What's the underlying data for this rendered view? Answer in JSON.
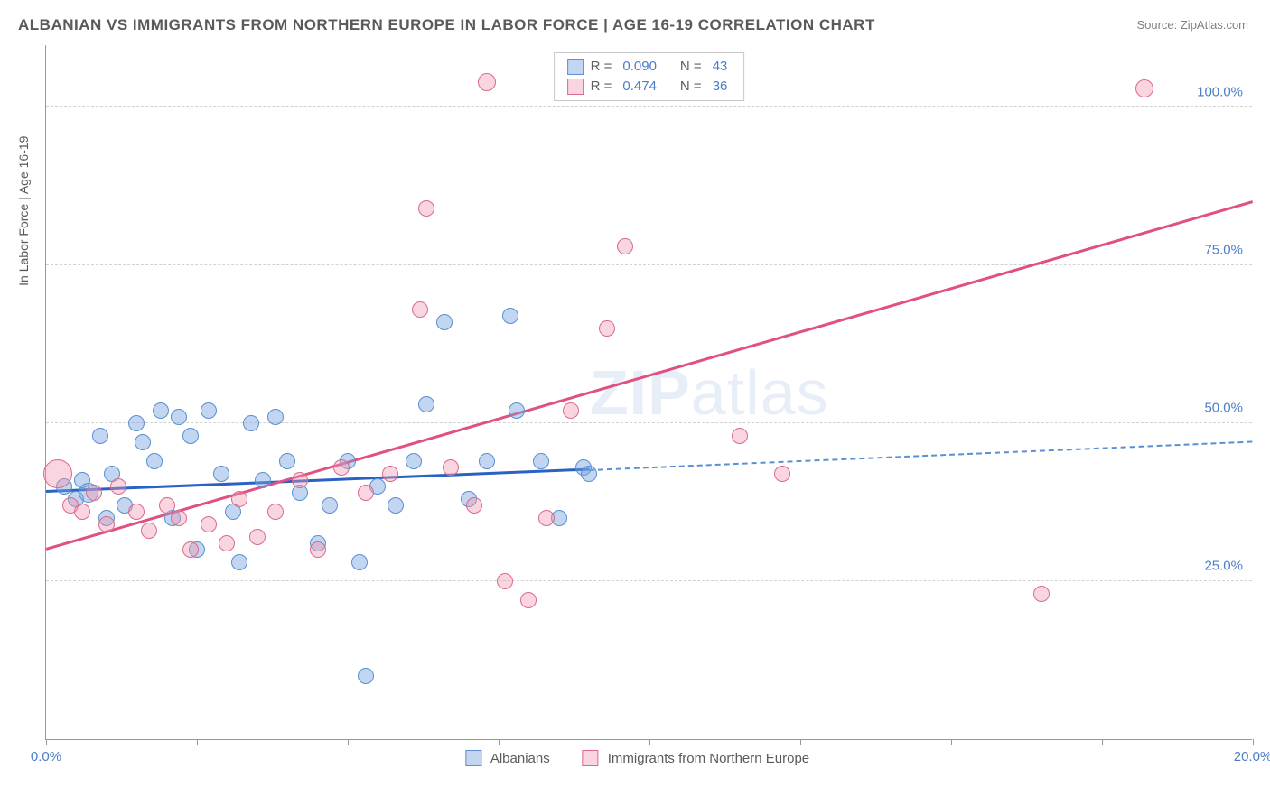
{
  "title": "ALBANIAN VS IMMIGRANTS FROM NORTHERN EUROPE IN LABOR FORCE | AGE 16-19 CORRELATION CHART",
  "source": "Source: ZipAtlas.com",
  "y_axis_label": "In Labor Force | Age 16-19",
  "watermark": {
    "part1": "ZIP",
    "part2": "atlas"
  },
  "chart": {
    "type": "scatter",
    "xlim": [
      0,
      20
    ],
    "ylim": [
      0,
      110
    ],
    "x_ticks": [
      0,
      2.5,
      5,
      7.5,
      10,
      12.5,
      15,
      17.5,
      20
    ],
    "x_tick_labels": {
      "0": "0.0%",
      "20": "20.0%"
    },
    "y_ticks": [
      25,
      50,
      75,
      100
    ],
    "y_tick_labels": {
      "25": "25.0%",
      "50": "50.0%",
      "75": "75.0%",
      "100": "100.0%"
    },
    "background_color": "#ffffff",
    "grid_color": "#d0d0d0",
    "axis_color": "#999999",
    "tick_label_color": "#4a7ec9",
    "series": [
      {
        "name": "Albanians",
        "color_fill": "rgba(120,165,225,0.45)",
        "color_stroke": "#5a8fd0",
        "marker_radius": 9,
        "trend": {
          "x1": 0,
          "y1": 39,
          "x2": 9,
          "y2": 42.5,
          "color": "#2a62c4",
          "width": 3
        },
        "trend_ext": {
          "x1": 9,
          "y1": 42.5,
          "x2": 20,
          "y2": 47,
          "color": "#5a8fd0"
        },
        "points": [
          {
            "x": 0.3,
            "y": 40
          },
          {
            "x": 0.5,
            "y": 38
          },
          {
            "x": 0.6,
            "y": 41
          },
          {
            "x": 0.7,
            "y": 39,
            "r": 11
          },
          {
            "x": 0.9,
            "y": 48
          },
          {
            "x": 1.0,
            "y": 35
          },
          {
            "x": 1.1,
            "y": 42
          },
          {
            "x": 1.3,
            "y": 37
          },
          {
            "x": 1.5,
            "y": 50
          },
          {
            "x": 1.6,
            "y": 47
          },
          {
            "x": 1.8,
            "y": 44
          },
          {
            "x": 1.9,
            "y": 52
          },
          {
            "x": 2.1,
            "y": 35
          },
          {
            "x": 2.2,
            "y": 51
          },
          {
            "x": 2.4,
            "y": 48
          },
          {
            "x": 2.5,
            "y": 30
          },
          {
            "x": 2.7,
            "y": 52
          },
          {
            "x": 2.9,
            "y": 42
          },
          {
            "x": 3.1,
            "y": 36
          },
          {
            "x": 3.2,
            "y": 28
          },
          {
            "x": 3.4,
            "y": 50
          },
          {
            "x": 3.6,
            "y": 41
          },
          {
            "x": 3.8,
            "y": 51
          },
          {
            "x": 4.0,
            "y": 44
          },
          {
            "x": 4.2,
            "y": 39
          },
          {
            "x": 4.5,
            "y": 31
          },
          {
            "x": 4.7,
            "y": 37
          },
          {
            "x": 5.0,
            "y": 44
          },
          {
            "x": 5.2,
            "y": 28
          },
          {
            "x": 5.3,
            "y": 10
          },
          {
            "x": 5.5,
            "y": 40
          },
          {
            "x": 5.8,
            "y": 37
          },
          {
            "x": 6.1,
            "y": 44
          },
          {
            "x": 6.3,
            "y": 53
          },
          {
            "x": 6.6,
            "y": 66
          },
          {
            "x": 7.0,
            "y": 38
          },
          {
            "x": 7.3,
            "y": 44
          },
          {
            "x": 7.7,
            "y": 67
          },
          {
            "x": 7.8,
            "y": 52
          },
          {
            "x": 8.2,
            "y": 44
          },
          {
            "x": 8.5,
            "y": 35
          },
          {
            "x": 8.9,
            "y": 43
          },
          {
            "x": 9.0,
            "y": 42
          }
        ]
      },
      {
        "name": "Immigrants from Northern Europe",
        "color_fill": "rgba(240,150,175,0.40)",
        "color_stroke": "#d86b8c",
        "marker_radius": 9,
        "trend": {
          "x1": 0,
          "y1": 30,
          "x2": 20,
          "y2": 85,
          "color": "#e05080",
          "width": 2.5
        },
        "points": [
          {
            "x": 0.2,
            "y": 42,
            "r": 16
          },
          {
            "x": 0.4,
            "y": 37
          },
          {
            "x": 0.6,
            "y": 36
          },
          {
            "x": 0.8,
            "y": 39
          },
          {
            "x": 1.0,
            "y": 34
          },
          {
            "x": 1.2,
            "y": 40
          },
          {
            "x": 1.5,
            "y": 36
          },
          {
            "x": 1.7,
            "y": 33
          },
          {
            "x": 2.0,
            "y": 37
          },
          {
            "x": 2.2,
            "y": 35
          },
          {
            "x": 2.4,
            "y": 30
          },
          {
            "x": 2.7,
            "y": 34
          },
          {
            "x": 3.0,
            "y": 31
          },
          {
            "x": 3.2,
            "y": 38
          },
          {
            "x": 3.5,
            "y": 32
          },
          {
            "x": 3.8,
            "y": 36
          },
          {
            "x": 4.2,
            "y": 41
          },
          {
            "x": 4.5,
            "y": 30
          },
          {
            "x": 4.9,
            "y": 43
          },
          {
            "x": 5.3,
            "y": 39
          },
          {
            "x": 5.7,
            "y": 42
          },
          {
            "x": 6.2,
            "y": 68
          },
          {
            "x": 6.3,
            "y": 84
          },
          {
            "x": 6.7,
            "y": 43
          },
          {
            "x": 7.1,
            "y": 37
          },
          {
            "x": 7.3,
            "y": 104,
            "r": 10
          },
          {
            "x": 7.6,
            "y": 25
          },
          {
            "x": 8.0,
            "y": 22
          },
          {
            "x": 8.3,
            "y": 35
          },
          {
            "x": 8.7,
            "y": 52
          },
          {
            "x": 9.3,
            "y": 65
          },
          {
            "x": 9.6,
            "y": 78
          },
          {
            "x": 11.5,
            "y": 48
          },
          {
            "x": 16.5,
            "y": 23
          },
          {
            "x": 18.2,
            "y": 103,
            "r": 10
          },
          {
            "x": 12.2,
            "y": 42
          }
        ]
      }
    ]
  },
  "legend_top": {
    "rows": [
      {
        "swatch_fill": "rgba(120,165,225,0.45)",
        "swatch_stroke": "#5a8fd0",
        "r_label": "R =",
        "r_val": "0.090",
        "n_label": "N =",
        "n_val": "43"
      },
      {
        "swatch_fill": "rgba(240,150,175,0.40)",
        "swatch_stroke": "#d86b8c",
        "r_label": "R =",
        "r_val": "0.474",
        "n_label": "N =",
        "n_val": "36"
      }
    ]
  },
  "legend_bottom": [
    {
      "swatch_fill": "rgba(120,165,225,0.45)",
      "swatch_stroke": "#5a8fd0",
      "label": "Albanians"
    },
    {
      "swatch_fill": "rgba(240,150,175,0.40)",
      "swatch_stroke": "#d86b8c",
      "label": "Immigrants from Northern Europe"
    }
  ]
}
